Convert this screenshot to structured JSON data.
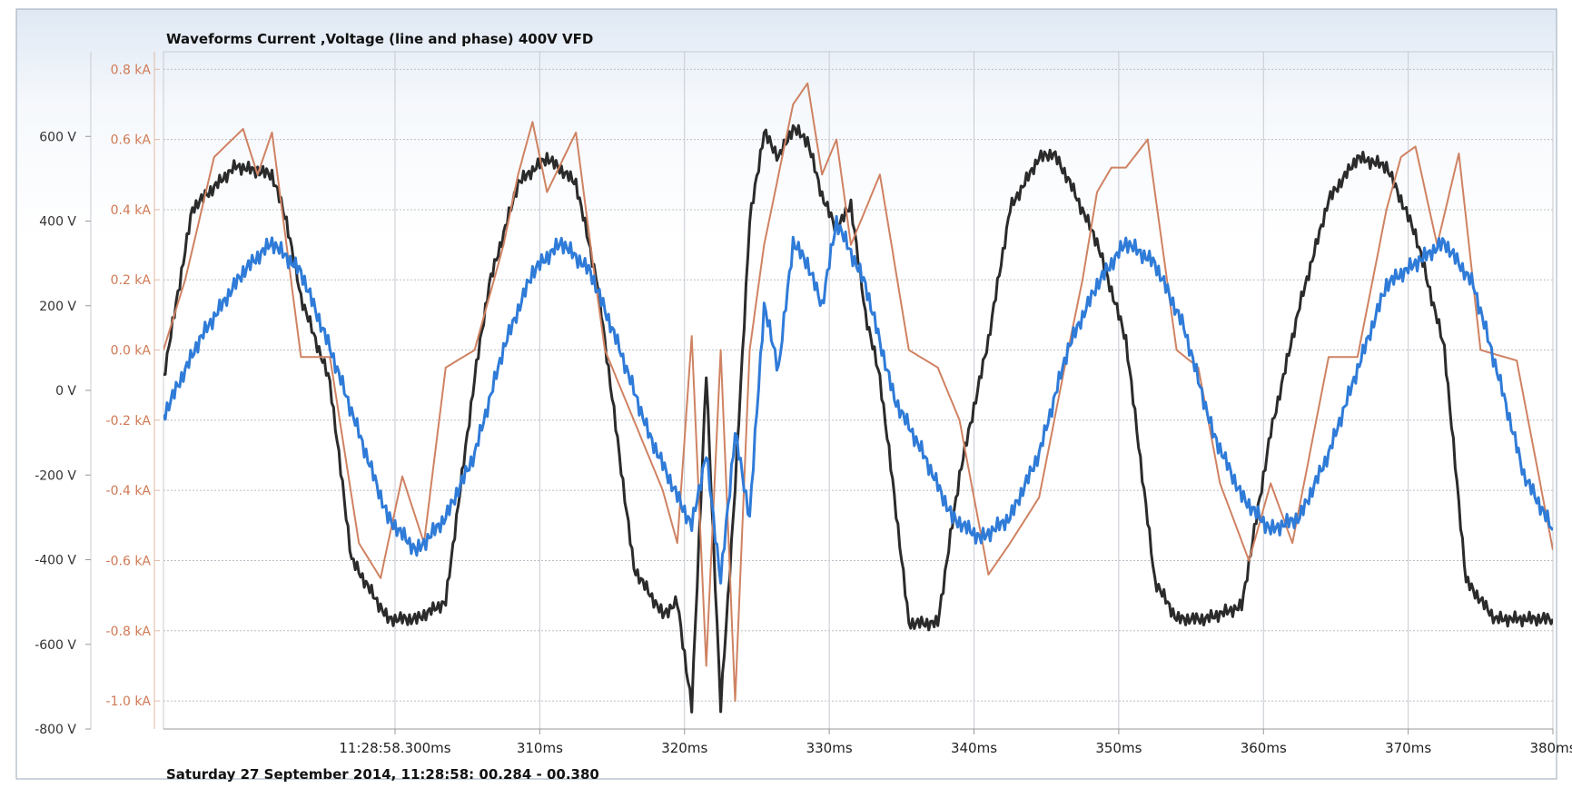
{
  "chart_data": {
    "type": "line",
    "title": "Waveforms Current ,Voltage (line and phase) 400V VFD",
    "footer": "Saturday 27 September 2014, 11:28:58: 00.284 - 00.380",
    "xlim": [
      0.284,
      0.38
    ],
    "x_unit": "s",
    "x_tick_labels": [
      "11:28:58.300ms",
      "310ms",
      "320ms",
      "330ms",
      "340ms",
      "350ms",
      "360ms",
      "370ms",
      "380ms"
    ],
    "x_tick_values": [
      0.3,
      0.31,
      0.32,
      0.33,
      0.34,
      0.35,
      0.36,
      0.37,
      0.38
    ],
    "y_left": {
      "unit": "V",
      "ylim": [
        -800,
        800
      ],
      "ticks": [
        600,
        400,
        200,
        0,
        -200,
        -400,
        -600,
        -800
      ],
      "tick_labels": [
        "600 V",
        "400 V",
        "200 V",
        "0 V",
        "-200 V",
        "-400 V",
        "-600 V",
        "-800 V"
      ]
    },
    "y_right": {
      "unit": "kA",
      "ylim": [
        -1.08,
        0.85
      ],
      "ticks": [
        0.8,
        0.6,
        0.4,
        0.2,
        0.0,
        -0.2,
        -0.4,
        -0.6,
        -0.8,
        -1.0
      ],
      "tick_labels": [
        "0.8 kA",
        "0.6 kA",
        "0.4 kA",
        "0.2 kA",
        "0.0 kA",
        "-0.2 kA",
        "-0.4 kA",
        "-0.6 kA",
        "-0.8 kA",
        "-1.0 kA"
      ]
    },
    "grid": true,
    "series": [
      {
        "color": "#2b2b2b",
        "axis": "left",
        "x": [
          0.284,
          0.286,
          0.289,
          0.2915,
          0.2925,
          0.2935,
          0.2955,
          0.297,
          0.2995,
          0.3015,
          0.3035,
          0.3055,
          0.3065,
          0.3085,
          0.3105,
          0.3125,
          0.314,
          0.3165,
          0.3185,
          0.3195,
          0.3205,
          0.3215,
          0.3225,
          0.3235,
          0.3245,
          0.3255,
          0.3265,
          0.3275,
          0.3285,
          0.3295,
          0.3305,
          0.3315,
          0.3325,
          0.3335,
          0.3345,
          0.3355,
          0.3375,
          0.339,
          0.341,
          0.3425,
          0.3445,
          0.3455,
          0.3465,
          0.3485,
          0.3505,
          0.3525,
          0.354,
          0.356,
          0.3585,
          0.3605,
          0.3625,
          0.3645,
          0.3665,
          0.3685,
          0.3705,
          0.3725,
          0.374,
          0.376,
          0.38
        ],
        "y": [
          30,
          430,
          530,
          510,
          400,
          220,
          20,
          -400,
          -540,
          -540,
          -500,
          30,
          250,
          490,
          550,
          490,
          250,
          -420,
          -530,
          -500,
          -750,
          40,
          -750,
          -230,
          400,
          610,
          550,
          620,
          590,
          460,
          380,
          440,
          180,
          30,
          -250,
          -550,
          -550,
          -200,
          120,
          430,
          550,
          560,
          500,
          350,
          120,
          -450,
          -540,
          -540,
          -510,
          -100,
          200,
          450,
          550,
          530,
          370,
          100,
          -450,
          -540,
          -540
        ]
      },
      {
        "color": "#cf8262",
        "axis": "right",
        "x": [
          0.284,
          0.2855,
          0.2875,
          0.2895,
          0.2905,
          0.2915,
          0.2925,
          0.2935,
          0.2955,
          0.2975,
          0.299,
          0.3005,
          0.302,
          0.3035,
          0.3055,
          0.3075,
          0.3085,
          0.3095,
          0.3105,
          0.3125,
          0.3135,
          0.3145,
          0.3165,
          0.3185,
          0.3195,
          0.3205,
          0.3215,
          0.3225,
          0.3235,
          0.3245,
          0.3255,
          0.3265,
          0.3275,
          0.3285,
          0.3295,
          0.3305,
          0.3315,
          0.3335,
          0.3355,
          0.3375,
          0.339,
          0.341,
          0.3425,
          0.3445,
          0.3465,
          0.3475,
          0.3485,
          0.3495,
          0.3505,
          0.352,
          0.354,
          0.3555,
          0.357,
          0.359,
          0.3605,
          0.362,
          0.3645,
          0.3665,
          0.3685,
          0.3695,
          0.3705,
          0.372,
          0.3735,
          0.375,
          0.3775,
          0.38
        ],
        "y": [
          0.0,
          0.2,
          0.55,
          0.63,
          0.5,
          0.62,
          0.3,
          -0.02,
          -0.02,
          -0.55,
          -0.65,
          -0.36,
          -0.55,
          -0.05,
          0.0,
          0.3,
          0.5,
          0.65,
          0.45,
          0.62,
          0.3,
          0.0,
          -0.2,
          -0.4,
          -0.55,
          0.04,
          -0.9,
          0.0,
          -1.0,
          0.0,
          0.3,
          0.5,
          0.7,
          0.76,
          0.5,
          0.6,
          0.3,
          0.5,
          0.0,
          -0.05,
          -0.2,
          -0.64,
          -0.55,
          -0.42,
          0.0,
          0.2,
          0.45,
          0.52,
          0.52,
          0.6,
          0.0,
          -0.05,
          -0.38,
          -0.6,
          -0.38,
          -0.55,
          -0.02,
          -0.02,
          0.4,
          0.55,
          0.58,
          0.3,
          0.56,
          0.0,
          -0.03,
          -0.57
        ]
      },
      {
        "color": "#2f7bd8",
        "axis": "left",
        "x": [
          0.284,
          0.2865,
          0.2895,
          0.2915,
          0.2935,
          0.2955,
          0.2975,
          0.2995,
          0.3015,
          0.3035,
          0.3055,
          0.3075,
          0.3095,
          0.3115,
          0.3135,
          0.3155,
          0.3175,
          0.3195,
          0.3205,
          0.3215,
          0.3225,
          0.3235,
          0.3245,
          0.3255,
          0.3265,
          0.3275,
          0.3285,
          0.3295,
          0.3305,
          0.3325,
          0.3345,
          0.3365,
          0.3385,
          0.3405,
          0.3425,
          0.3445,
          0.3465,
          0.3485,
          0.3505,
          0.3525,
          0.3545,
          0.3565,
          0.3585,
          0.3605,
          0.3625,
          0.3645,
          0.3665,
          0.3685,
          0.3705,
          0.3725,
          0.3745,
          0.3765,
          0.378,
          0.38
        ],
        "y": [
          -60,
          120,
          280,
          350,
          280,
          100,
          -100,
          -300,
          -380,
          -300,
          -150,
          100,
          280,
          350,
          280,
          100,
          -100,
          -250,
          -320,
          -150,
          -450,
          -100,
          -300,
          200,
          50,
          350,
          300,
          200,
          400,
          250,
          -20,
          -150,
          -300,
          -350,
          -300,
          -150,
          100,
          250,
          350,
          300,
          150,
          -100,
          -250,
          -330,
          -300,
          -150,
          50,
          250,
          300,
          350,
          250,
          0,
          -200,
          -330
        ]
      }
    ]
  }
}
